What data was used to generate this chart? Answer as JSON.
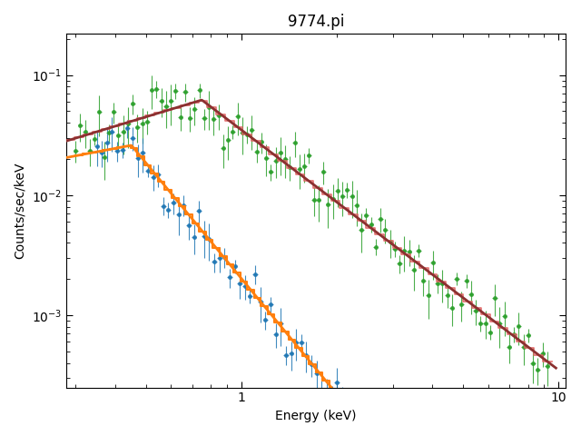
{
  "title": "9774.pi",
  "xlabel": "Energy (keV)",
  "ylabel": "Counts/sec/keV",
  "xlim": [
    0.28,
    10.5
  ],
  "ylim": [
    0.00025,
    0.22
  ],
  "blue_color": "#1f77b4",
  "green_color": "#2ca02c",
  "orange_color": "#ff7f0e",
  "red_smooth_color": "#8b3030",
  "red_step_color": "#e06060",
  "figsize": [
    6.4,
    4.8
  ],
  "dpi": 100
}
